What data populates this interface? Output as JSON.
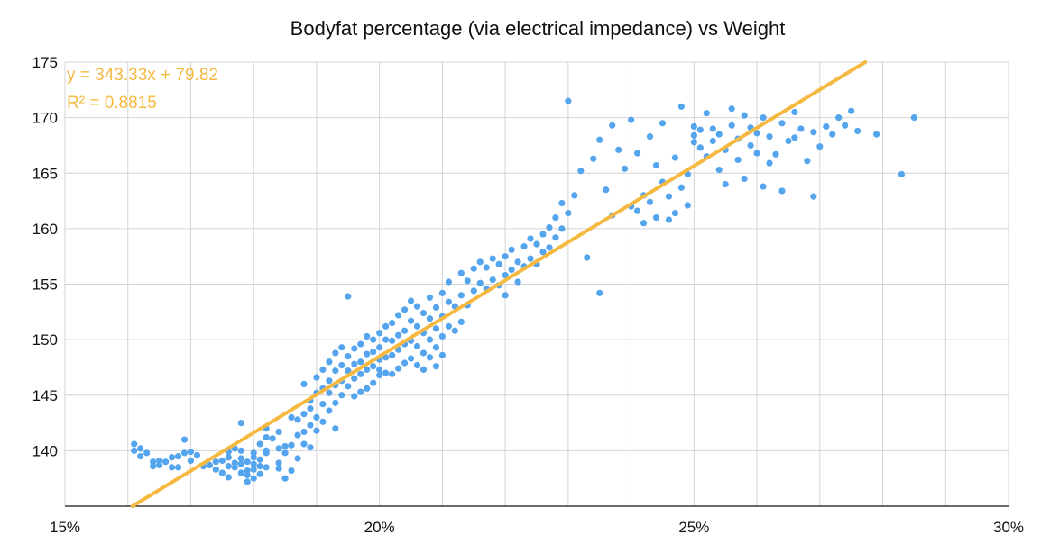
{
  "chart_data": {
    "type": "scatter",
    "title": "Bodyfat percentage (via electrical impedance) vs Weight",
    "xlabel": "",
    "ylabel": "",
    "xlim": [
      0.15,
      0.3
    ],
    "ylim": [
      135,
      175
    ],
    "x_ticks": [
      0.15,
      0.2,
      0.25,
      0.3
    ],
    "x_tick_labels": [
      "15%",
      "20%",
      "25%",
      "30%"
    ],
    "y_ticks": [
      140,
      145,
      150,
      155,
      160,
      165,
      170,
      175
    ],
    "y_tick_labels": [
      "140",
      "145",
      "150",
      "155",
      "160",
      "165",
      "170",
      "175"
    ],
    "x_grid_step": 0.01,
    "y_grid_step": 5,
    "grid": true,
    "legend": "none",
    "colors": {
      "points": "#55A4EE",
      "trendline": "#F5B942",
      "annotation": "#F5B942"
    },
    "trendline": {
      "type": "linear",
      "slope": 343.33,
      "intercept": 79.82
    },
    "annotations": [
      "y = 343.33x + 79.82",
      "R² = 0.8815"
    ],
    "series": [
      {
        "points": [
          [
            0.161,
            140.6
          ],
          [
            0.161,
            140.0
          ],
          [
            0.162,
            139.5
          ],
          [
            0.162,
            140.2
          ],
          [
            0.163,
            139.8
          ],
          [
            0.164,
            138.6
          ],
          [
            0.164,
            139.0
          ],
          [
            0.165,
            139.1
          ],
          [
            0.165,
            138.7
          ],
          [
            0.166,
            139.0
          ],
          [
            0.167,
            139.4
          ],
          [
            0.167,
            138.5
          ],
          [
            0.168,
            138.5
          ],
          [
            0.168,
            139.5
          ],
          [
            0.169,
            139.8
          ],
          [
            0.169,
            141.0
          ],
          [
            0.17,
            139.9
          ],
          [
            0.17,
            139.1
          ],
          [
            0.171,
            139.6
          ],
          [
            0.172,
            138.6
          ],
          [
            0.173,
            138.7
          ],
          [
            0.174,
            139.0
          ],
          [
            0.174,
            138.3
          ],
          [
            0.175,
            139.1
          ],
          [
            0.175,
            138.0
          ],
          [
            0.176,
            139.9
          ],
          [
            0.176,
            138.6
          ],
          [
            0.176,
            137.6
          ],
          [
            0.176,
            139.4
          ],
          [
            0.177,
            138.5
          ],
          [
            0.177,
            140.2
          ],
          [
            0.177,
            138.9
          ],
          [
            0.178,
            138.8
          ],
          [
            0.178,
            139.3
          ],
          [
            0.178,
            140.0
          ],
          [
            0.178,
            142.5
          ],
          [
            0.178,
            138.0
          ],
          [
            0.179,
            138.2
          ],
          [
            0.179,
            137.2
          ],
          [
            0.179,
            137.8
          ],
          [
            0.179,
            139.0
          ],
          [
            0.18,
            139.4
          ],
          [
            0.18,
            138.3
          ],
          [
            0.18,
            137.5
          ],
          [
            0.18,
            139.8
          ],
          [
            0.18,
            138.8
          ],
          [
            0.181,
            139.2
          ],
          [
            0.181,
            138.6
          ],
          [
            0.181,
            140.6
          ],
          [
            0.181,
            137.9
          ],
          [
            0.182,
            140.0
          ],
          [
            0.182,
            141.2
          ],
          [
            0.182,
            138.5
          ],
          [
            0.182,
            139.8
          ],
          [
            0.182,
            142.0
          ],
          [
            0.183,
            141.1
          ],
          [
            0.184,
            138.4
          ],
          [
            0.184,
            140.2
          ],
          [
            0.184,
            141.7
          ],
          [
            0.184,
            138.9
          ],
          [
            0.185,
            140.4
          ],
          [
            0.185,
            137.5
          ],
          [
            0.185,
            139.8
          ],
          [
            0.186,
            143.0
          ],
          [
            0.186,
            140.5
          ],
          [
            0.186,
            138.2
          ],
          [
            0.187,
            142.8
          ],
          [
            0.187,
            141.4
          ],
          [
            0.187,
            139.3
          ],
          [
            0.188,
            143.3
          ],
          [
            0.188,
            141.7
          ],
          [
            0.188,
            140.6
          ],
          [
            0.188,
            146.0
          ],
          [
            0.189,
            144.5
          ],
          [
            0.189,
            142.3
          ],
          [
            0.189,
            140.3
          ],
          [
            0.189,
            143.8
          ],
          [
            0.19,
            146.6
          ],
          [
            0.19,
            145.2
          ],
          [
            0.19,
            143.0
          ],
          [
            0.19,
            141.8
          ],
          [
            0.191,
            147.3
          ],
          [
            0.191,
            145.6
          ],
          [
            0.191,
            144.2
          ],
          [
            0.191,
            142.6
          ],
          [
            0.192,
            148.0
          ],
          [
            0.192,
            146.3
          ],
          [
            0.192,
            145.2
          ],
          [
            0.192,
            143.6
          ],
          [
            0.193,
            148.8
          ],
          [
            0.193,
            147.2
          ],
          [
            0.193,
            145.9
          ],
          [
            0.193,
            144.3
          ],
          [
            0.193,
            142.0
          ],
          [
            0.194,
            149.3
          ],
          [
            0.194,
            147.7
          ],
          [
            0.194,
            146.3
          ],
          [
            0.194,
            145.0
          ],
          [
            0.195,
            153.9
          ],
          [
            0.195,
            148.5
          ],
          [
            0.195,
            147.2
          ],
          [
            0.195,
            145.8
          ],
          [
            0.196,
            149.2
          ],
          [
            0.196,
            147.8
          ],
          [
            0.196,
            146.5
          ],
          [
            0.196,
            144.9
          ],
          [
            0.197,
            149.6
          ],
          [
            0.197,
            148.0
          ],
          [
            0.197,
            146.9
          ],
          [
            0.197,
            145.3
          ],
          [
            0.198,
            150.3
          ],
          [
            0.198,
            148.7
          ],
          [
            0.198,
            147.3
          ],
          [
            0.198,
            145.6
          ],
          [
            0.199,
            150.0
          ],
          [
            0.199,
            148.9
          ],
          [
            0.199,
            147.6
          ],
          [
            0.199,
            146.1
          ],
          [
            0.2,
            150.6
          ],
          [
            0.2,
            149.3
          ],
          [
            0.2,
            148.2
          ],
          [
            0.2,
            146.8
          ],
          [
            0.2,
            147.3
          ],
          [
            0.201,
            151.2
          ],
          [
            0.201,
            150.0
          ],
          [
            0.201,
            148.4
          ],
          [
            0.201,
            147.0
          ],
          [
            0.202,
            151.5
          ],
          [
            0.202,
            149.9
          ],
          [
            0.202,
            148.6
          ],
          [
            0.202,
            146.9
          ],
          [
            0.203,
            152.2
          ],
          [
            0.203,
            150.4
          ],
          [
            0.203,
            149.1
          ],
          [
            0.203,
            147.4
          ],
          [
            0.204,
            152.7
          ],
          [
            0.204,
            150.8
          ],
          [
            0.204,
            149.6
          ],
          [
            0.204,
            147.9
          ],
          [
            0.205,
            153.5
          ],
          [
            0.205,
            151.7
          ],
          [
            0.205,
            149.9
          ],
          [
            0.205,
            148.3
          ],
          [
            0.206,
            153.0
          ],
          [
            0.206,
            151.2
          ],
          [
            0.206,
            149.4
          ],
          [
            0.206,
            147.7
          ],
          [
            0.207,
            152.4
          ],
          [
            0.207,
            150.6
          ],
          [
            0.207,
            148.8
          ],
          [
            0.207,
            147.3
          ],
          [
            0.208,
            153.8
          ],
          [
            0.208,
            151.9
          ],
          [
            0.208,
            150.0
          ],
          [
            0.208,
            148.4
          ],
          [
            0.209,
            152.9
          ],
          [
            0.209,
            151.0
          ],
          [
            0.209,
            149.3
          ],
          [
            0.209,
            147.6
          ],
          [
            0.21,
            154.2
          ],
          [
            0.21,
            152.1
          ],
          [
            0.21,
            150.3
          ],
          [
            0.21,
            148.6
          ],
          [
            0.211,
            155.2
          ],
          [
            0.211,
            153.4
          ],
          [
            0.211,
            151.2
          ],
          [
            0.212,
            153.0
          ],
          [
            0.212,
            150.8
          ],
          [
            0.213,
            156.0
          ],
          [
            0.213,
            154.0
          ],
          [
            0.213,
            151.6
          ],
          [
            0.214,
            155.3
          ],
          [
            0.214,
            153.1
          ],
          [
            0.215,
            156.4
          ],
          [
            0.215,
            154.4
          ],
          [
            0.216,
            157.0
          ],
          [
            0.216,
            155.1
          ],
          [
            0.217,
            156.5
          ],
          [
            0.217,
            154.6
          ],
          [
            0.218,
            157.3
          ],
          [
            0.218,
            155.4
          ],
          [
            0.219,
            156.8
          ],
          [
            0.219,
            154.9
          ],
          [
            0.22,
            157.5
          ],
          [
            0.22,
            155.8
          ],
          [
            0.22,
            154.0
          ],
          [
            0.221,
            156.3
          ],
          [
            0.221,
            158.1
          ],
          [
            0.222,
            157.0
          ],
          [
            0.222,
            155.2
          ],
          [
            0.223,
            158.4
          ],
          [
            0.223,
            156.6
          ],
          [
            0.224,
            159.1
          ],
          [
            0.224,
            157.3
          ],
          [
            0.225,
            158.6
          ],
          [
            0.225,
            156.8
          ],
          [
            0.226,
            159.5
          ],
          [
            0.226,
            157.9
          ],
          [
            0.227,
            160.1
          ],
          [
            0.227,
            158.3
          ],
          [
            0.228,
            161.0
          ],
          [
            0.228,
            159.2
          ],
          [
            0.229,
            162.3
          ],
          [
            0.229,
            160.0
          ],
          [
            0.23,
            171.5
          ],
          [
            0.23,
            161.4
          ],
          [
            0.231,
            163.0
          ],
          [
            0.232,
            165.2
          ],
          [
            0.233,
            157.4
          ],
          [
            0.234,
            166.3
          ],
          [
            0.235,
            168.0
          ],
          [
            0.235,
            154.2
          ],
          [
            0.236,
            163.5
          ],
          [
            0.237,
            169.3
          ],
          [
            0.237,
            161.2
          ],
          [
            0.238,
            167.1
          ],
          [
            0.239,
            165.4
          ],
          [
            0.24,
            162.0
          ],
          [
            0.24,
            169.8
          ],
          [
            0.241,
            161.6
          ],
          [
            0.241,
            166.8
          ],
          [
            0.242,
            163.0
          ],
          [
            0.242,
            160.5
          ],
          [
            0.243,
            168.3
          ],
          [
            0.243,
            162.4
          ],
          [
            0.244,
            165.7
          ],
          [
            0.244,
            161.0
          ],
          [
            0.245,
            164.2
          ],
          [
            0.245,
            169.5
          ],
          [
            0.246,
            160.8
          ],
          [
            0.246,
            162.9
          ],
          [
            0.247,
            166.4
          ],
          [
            0.247,
            161.4
          ],
          [
            0.248,
            163.7
          ],
          [
            0.248,
            171.0
          ],
          [
            0.249,
            162.1
          ],
          [
            0.249,
            164.9
          ],
          [
            0.25,
            169.2
          ],
          [
            0.25,
            168.4
          ],
          [
            0.25,
            167.8
          ],
          [
            0.251,
            168.9
          ],
          [
            0.251,
            167.3
          ],
          [
            0.252,
            166.5
          ],
          [
            0.252,
            170.4
          ],
          [
            0.253,
            169.0
          ],
          [
            0.253,
            167.9
          ],
          [
            0.254,
            165.3
          ],
          [
            0.254,
            168.5
          ],
          [
            0.255,
            164.0
          ],
          [
            0.255,
            167.1
          ],
          [
            0.256,
            170.8
          ],
          [
            0.256,
            169.3
          ],
          [
            0.257,
            166.2
          ],
          [
            0.257,
            168.1
          ],
          [
            0.258,
            164.5
          ],
          [
            0.258,
            170.2
          ],
          [
            0.259,
            167.5
          ],
          [
            0.259,
            169.1
          ],
          [
            0.26,
            166.8
          ],
          [
            0.26,
            168.6
          ],
          [
            0.261,
            163.8
          ],
          [
            0.261,
            170.0
          ],
          [
            0.262,
            168.3
          ],
          [
            0.262,
            165.9
          ],
          [
            0.263,
            166.7
          ],
          [
            0.264,
            169.5
          ],
          [
            0.264,
            163.4
          ],
          [
            0.265,
            167.9
          ],
          [
            0.266,
            170.5
          ],
          [
            0.266,
            168.2
          ],
          [
            0.267,
            169.0
          ],
          [
            0.268,
            166.1
          ],
          [
            0.269,
            168.7
          ],
          [
            0.269,
            162.9
          ],
          [
            0.27,
            167.4
          ],
          [
            0.271,
            169.2
          ],
          [
            0.272,
            168.5
          ],
          [
            0.273,
            170.0
          ],
          [
            0.274,
            169.3
          ],
          [
            0.275,
            170.6
          ],
          [
            0.276,
            168.8
          ],
          [
            0.279,
            168.5
          ],
          [
            0.283,
            164.9
          ],
          [
            0.285,
            170.0
          ]
        ]
      }
    ]
  }
}
